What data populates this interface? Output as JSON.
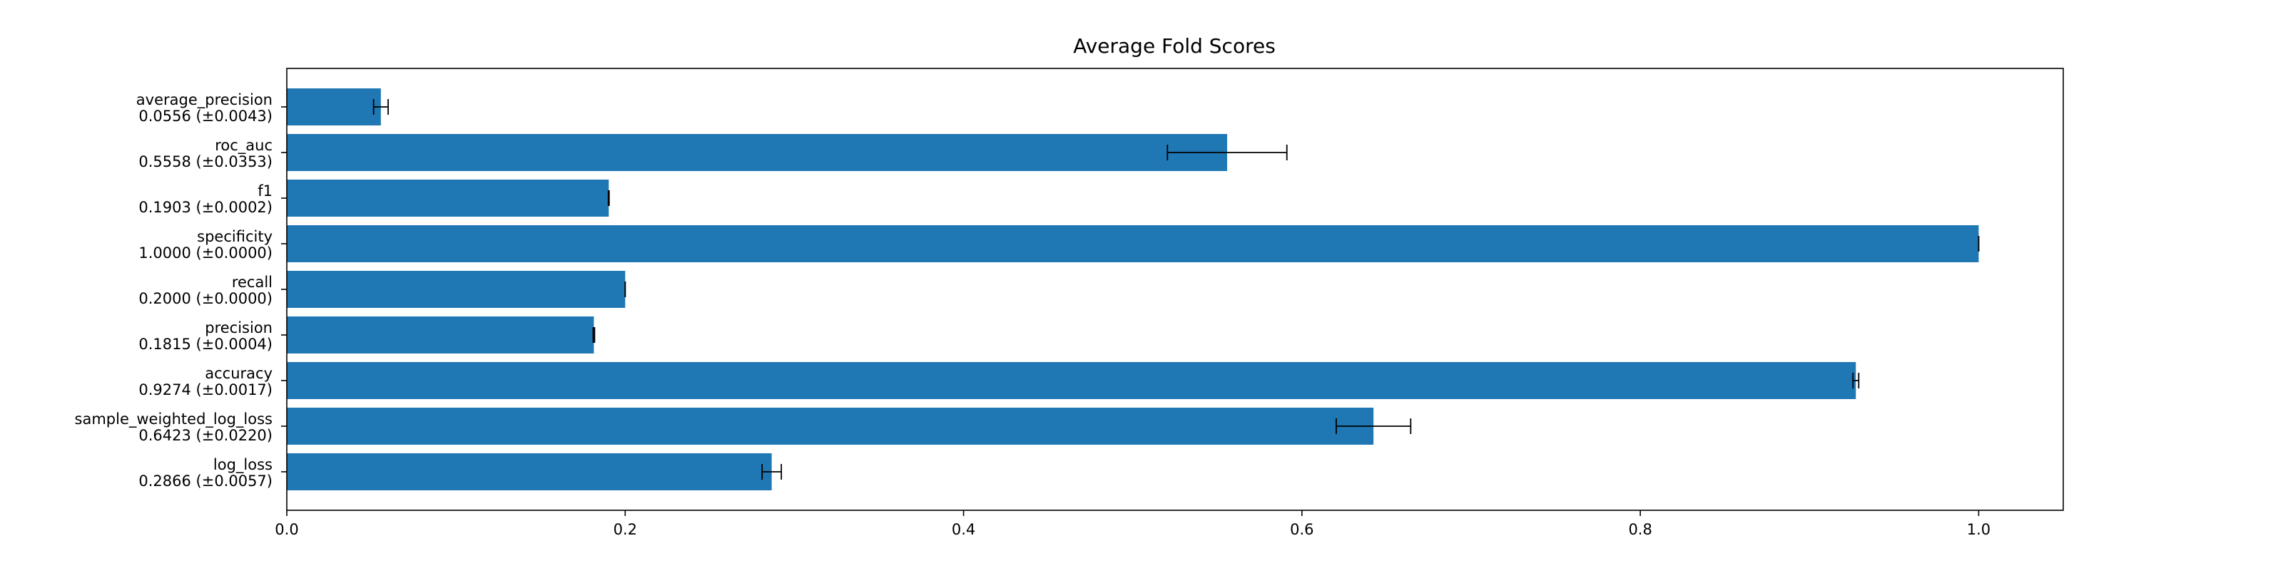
{
  "chart_data": {
    "type": "bar",
    "orientation": "horizontal",
    "title": "Average Fold Scores",
    "xlabel": "",
    "ylabel": "",
    "xlim": [
      0,
      1.05
    ],
    "xticks": [
      0.0,
      0.2,
      0.4,
      0.6,
      0.8,
      1.0
    ],
    "xtick_labels": [
      "0.0",
      "0.2",
      "0.4",
      "0.6",
      "0.8",
      "1.0"
    ],
    "grid": false,
    "bar_color": "#1f77b4",
    "errorbar_color": "#000000",
    "categories": [
      "average_precision",
      "roc_auc",
      "f1",
      "specificity",
      "recall",
      "precision",
      "accuracy",
      "sample_weighted_log_loss",
      "log_loss"
    ],
    "category_value_labels": [
      "0.0556 (±0.0043)",
      "0.5558 (±0.0353)",
      "0.1903 (±0.0002)",
      "1.0000 (±0.0000)",
      "0.2000 (±0.0000)",
      "0.1815 (±0.0004)",
      "0.9274 (±0.0017)",
      "0.6423 (±0.0220)",
      "0.2866 (±0.0057)"
    ],
    "values": [
      0.0556,
      0.5558,
      0.1903,
      1.0,
      0.2,
      0.1815,
      0.9274,
      0.6423,
      0.2866
    ],
    "errors": [
      0.0043,
      0.0353,
      0.0002,
      0.0,
      0.0,
      0.0004,
      0.0017,
      0.022,
      0.0057
    ]
  }
}
